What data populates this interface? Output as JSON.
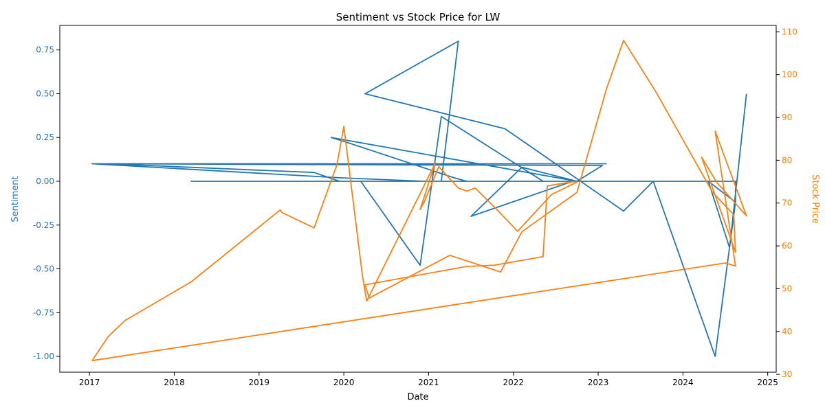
{
  "chart_data": {
    "type": "line",
    "title": "Sentiment vs Stock Price for LW",
    "xlabel": "Date",
    "ylabel_left": "Sentiment",
    "ylabel_right": "Stock Price",
    "xlim": [
      2016.65,
      2025.1
    ],
    "ylim_left": [
      -1.09,
      0.89
    ],
    "ylim_right": [
      30.5,
      111.5
    ],
    "x_ticks": [
      "2017",
      "2018",
      "2019",
      "2020",
      "2021",
      "2022",
      "2023",
      "2024",
      "2025"
    ],
    "y_ticks_left": [
      "-1.00",
      "-0.75",
      "-0.50",
      "-0.25",
      "0.00",
      "0.25",
      "0.50",
      "0.75"
    ],
    "y_ticks_right": [
      "30",
      "40",
      "50",
      "60",
      "70",
      "80",
      "90",
      "100",
      "110"
    ],
    "colors": {
      "sentiment": "#1f77b4",
      "price": "#ff7f0e"
    },
    "series": [
      {
        "key": "sentiment",
        "axis": "left",
        "x": [
          2023.1,
          2017.03,
          2017.2,
          2019.65,
          2019.95,
          2020.0,
          2020.25,
          2021.25,
          2021.28,
          2022.75,
          2022.7,
          2021.5,
          2022.1,
          2022.75,
          2023.05,
          2017.03,
          2019.95,
          2020.95,
          2021.05,
          2021.15,
          2021.35,
          2020.25,
          2021.9,
          2022.05,
          2023.3,
          2023.65,
          2024.25,
          2023.65,
          2024.38,
          2024.62,
          2024.62,
          2018.2,
          2020.2,
          2020.9,
          2021.15,
          2022.35,
          2022.75,
          2019.85,
          2020.05,
          2021.3,
          2021.45,
          2024.62,
          2024.62,
          2024.3,
          2024.55,
          2024.75
        ],
        "y": [
          0.1,
          0.1,
          0.1,
          0.05,
          0.0,
          0.0,
          0.0,
          0.0,
          0.0,
          0.0,
          0.0,
          -0.2,
          0.08,
          0.0,
          0.09,
          0.1,
          0.02,
          0.0,
          0.0,
          0.0,
          0.8,
          0.5,
          0.3,
          0.25,
          -0.17,
          0.0,
          0.0,
          0.0,
          -1.0,
          -0.12,
          0.0,
          0.0,
          0.0,
          -0.48,
          0.37,
          0.0,
          0.0,
          0.25,
          0.22,
          0.02,
          0.0,
          0.0,
          -0.12,
          0.0,
          -0.38,
          0.5
        ]
      },
      {
        "key": "price",
        "axis": "right",
        "x": [
          2017.03,
          2017.22,
          2017.42,
          2018.2,
          2019.25,
          2019.27,
          2019.65,
          2019.92,
          2020.0,
          2020.22,
          2020.27,
          2021.05,
          2021.08,
          2020.9,
          2020.95,
          2021.12,
          2021.35,
          2021.45,
          2021.55,
          2021.78,
          2022.05,
          2022.45,
          2022.75,
          2022.7,
          2022.4,
          2022.35,
          2021.78,
          2021.45,
          2020.25,
          2020.3,
          2021.25,
          2021.85,
          2022.1,
          2022.75,
          2023.1,
          2023.3,
          2023.68,
          2024.35,
          2024.6,
          2024.62,
          2024.22,
          2024.4,
          2024.75,
          2024.38,
          2024.62,
          2024.5,
          2017.03
        ],
        "y": [
          33.2,
          38.8,
          42.6,
          51.6,
          68.4,
          67.8,
          64.2,
          79.0,
          87.9,
          53.0,
          47.1,
          78.2,
          79.5,
          68.5,
          70.3,
          78.5,
          73.5,
          72.8,
          73.5,
          69.0,
          63.4,
          72.0,
          74.9,
          75.0,
          74.0,
          57.5,
          55.5,
          55.2,
          50.9,
          47.8,
          57.8,
          53.9,
          63.3,
          72.5,
          96.8,
          108.0,
          96.0,
          72.5,
          67.3,
          58.5,
          80.7,
          74.8,
          67.0,
          86.8,
          55.3,
          56.0,
          33.2
        ]
      }
    ]
  }
}
